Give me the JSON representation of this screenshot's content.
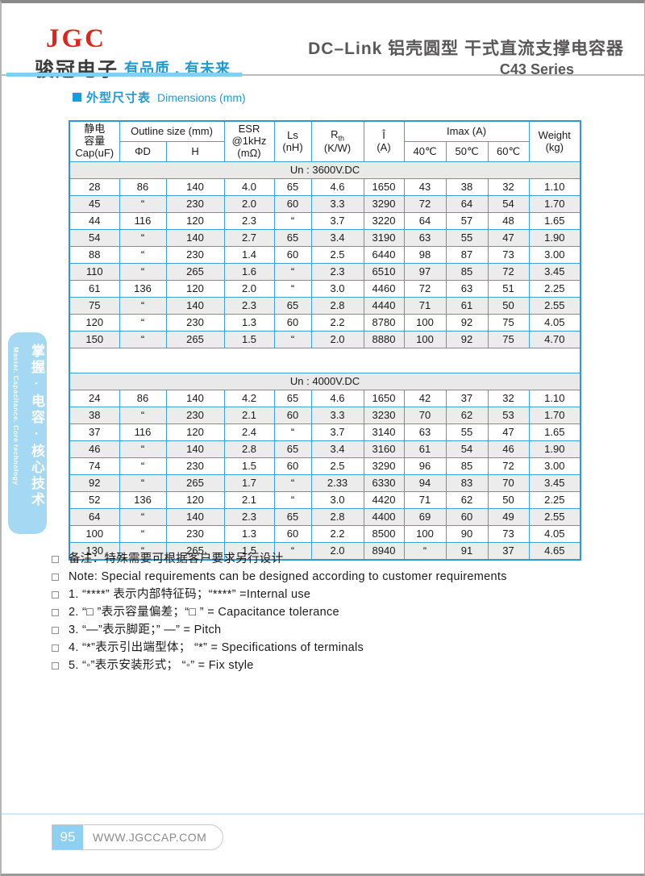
{
  "header": {
    "logo_text": "JGC",
    "company_cn": "骏冠电子",
    "slogan_cn": "有品质 . 有未来",
    "title_cn": "DC–Link 铝壳圆型 干式直流支撑电容器",
    "series": "C43 Series"
  },
  "section": {
    "title_cn": "外型尺寸表",
    "title_en": "Dimensions  (mm)"
  },
  "table": {
    "head": {
      "cap_line1": "静电",
      "cap_line2": "容量",
      "cap_line3": "Cap(uF)",
      "outline_group": "Outline size (mm)",
      "outline_d": "ΦD",
      "outline_h": "H",
      "esr_line1": "ESR",
      "esr_line2": "@1kHz",
      "esr_line3": "(mΩ)",
      "ls_line1": "Ls",
      "ls_line2": "(nH)",
      "rth_main": "R",
      "rth_sub": "th",
      "rth_line2": "(K/W)",
      "i_line1": "Î",
      "i_line2": "(A)",
      "imax_group": "Imax (A)",
      "imax_40": "40℃",
      "imax_50": "50℃",
      "imax_60": "60℃",
      "weight_line1": "Weight",
      "weight_line2": "(kg)"
    },
    "groups": [
      {
        "label": "Un : 3600V.DC",
        "rows": [
          [
            "28",
            "86",
            "140",
            "4.0",
            "65",
            "4.6",
            "1650",
            "43",
            "38",
            "32",
            "1.10"
          ],
          [
            "45",
            "“",
            "230",
            "2.0",
            "60",
            "3.3",
            "3290",
            "72",
            "64",
            "54",
            "1.70"
          ],
          [
            "44",
            "116",
            "120",
            "2.3",
            "“",
            "3.7",
            "3220",
            "64",
            "57",
            "48",
            "1.65"
          ],
          [
            "54",
            "“",
            "140",
            "2.7",
            "65",
            "3.4",
            "3190",
            "63",
            "55",
            "47",
            "1.90"
          ],
          [
            "88",
            "“",
            "230",
            "1.4",
            "60",
            "2.5",
            "6440",
            "98",
            "87",
            "73",
            "3.00"
          ],
          [
            "110",
            "“",
            "265",
            "1.6",
            "“",
            "2.3",
            "6510",
            "97",
            "85",
            "72",
            "3.45"
          ],
          [
            "61",
            "136",
            "120",
            "2.0",
            "“",
            "3.0",
            "4460",
            "72",
            "63",
            "51",
            "2.25"
          ],
          [
            "75",
            "“",
            "140",
            "2.3",
            "65",
            "2.8",
            "4440",
            "71",
            "61",
            "50",
            "2.55"
          ],
          [
            "120",
            "“",
            "230",
            "1.3",
            "60",
            "2.2",
            "8780",
            "100",
            "92",
            "75",
            "4.05"
          ],
          [
            "150",
            "“",
            "265",
            "1.5",
            "“",
            "2.0",
            "8880",
            "100",
            "92",
            "75",
            "4.70"
          ]
        ]
      },
      {
        "label": "Un : 4000V.DC",
        "rows": [
          [
            "24",
            "86",
            "140",
            "4.2",
            "65",
            "4.6",
            "1650",
            "42",
            "37",
            "32",
            "1.10"
          ],
          [
            "38",
            "“",
            "230",
            "2.1",
            "60",
            "3.3",
            "3230",
            "70",
            "62",
            "53",
            "1.70"
          ],
          [
            "37",
            "116",
            "120",
            "2.4",
            "“",
            "3.7",
            "3140",
            "63",
            "55",
            "47",
            "1.65"
          ],
          [
            "46",
            "“",
            "140",
            "2.8",
            "65",
            "3.4",
            "3160",
            "61",
            "54",
            "46",
            "1.90"
          ],
          [
            "74",
            "“",
            "230",
            "1.5",
            "60",
            "2.5",
            "3290",
            "96",
            "85",
            "72",
            "3.00"
          ],
          [
            "92",
            "“",
            "265",
            "1.7",
            "“",
            "2.33",
            "6330",
            "94",
            "83",
            "70",
            "3.45"
          ],
          [
            "52",
            "136",
            "120",
            "2.1",
            "“",
            "3.0",
            "4420",
            "71",
            "62",
            "50",
            "2.25"
          ],
          [
            "64",
            "“",
            "140",
            "2.3",
            "65",
            "2.8",
            "4400",
            "69",
            "60",
            "49",
            "2.55"
          ],
          [
            "100",
            "“",
            "230",
            "1.3",
            "60",
            "2.2",
            "8500",
            "100",
            "90",
            "73",
            "4.05"
          ],
          [
            "130",
            "“",
            "265",
            "1.5",
            "“",
            "2.0",
            "8940",
            "“",
            "91",
            "37",
            "4.65"
          ]
        ]
      }
    ]
  },
  "notes": [
    "备注：特殊需要可根据客户要求另行设计",
    "Note: Special requirements can be designed according to customer requirements",
    "1. “****” 表示内部特征码；“****”  =Internal use",
    "2. “□ ”表示容量偏差；“□ ”  = Capacitance tolerance",
    "3. “—”表示脚距；” —”  = Pitch",
    "4. “*”表示引出端型体；  “*”  = Specifications of terminals",
    "5. “◦”表示安装形式；  “◦”  = Fix style"
  ],
  "sidebar": {
    "vertical_cn": "掌握·电容·核心技术",
    "vertical_en": "Master. Capacitance. Core technology"
  },
  "footer": {
    "page_number": "95",
    "website": "WWW.JGCCAP.COM"
  },
  "colors": {
    "accent_blue": "#1b9cd8",
    "table_border_blue": "#3ca3da",
    "logo_red": "#e2231a",
    "tab_light_blue": "#a5d8f3",
    "stripe_gray": "#ececec"
  }
}
